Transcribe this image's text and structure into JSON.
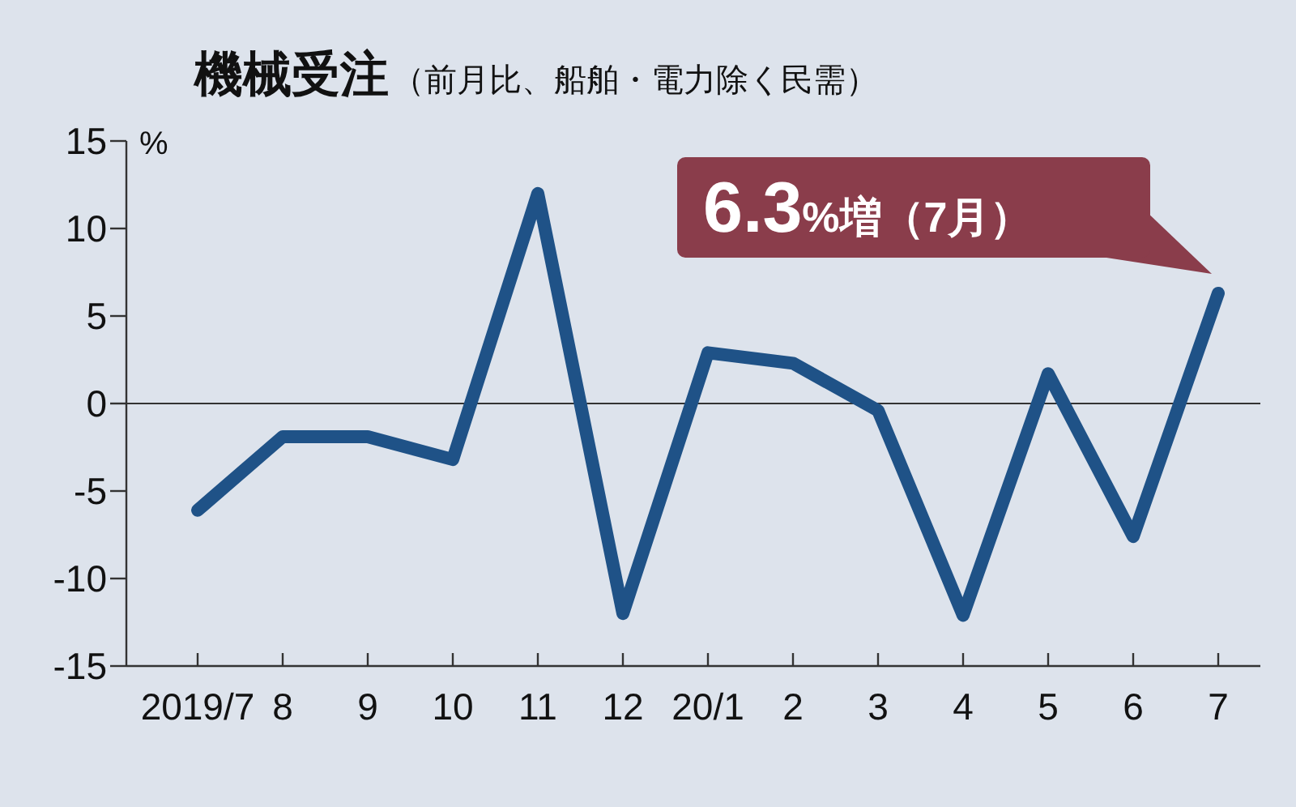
{
  "chart_data": {
    "type": "line",
    "title": "機械受注",
    "subtitle": "（前月比、船舶・電力除く民需）",
    "ylabel": "%",
    "categories": [
      "2019/7",
      "8",
      "9",
      "10",
      "11",
      "12",
      "20/1",
      "2",
      "3",
      "4",
      "5",
      "6",
      "7"
    ],
    "series": [
      {
        "color": "#1f5287",
        "values": [
          -6.1,
          -1.9,
          -1.9,
          -3.2,
          12.0,
          -12.0,
          2.9,
          2.3,
          -0.4,
          -12.1,
          1.7,
          -7.6,
          6.3
        ]
      }
    ],
    "ylim": [
      -15,
      15
    ],
    "yticks": [
      -15,
      -10,
      -5,
      0,
      5,
      10,
      15
    ],
    "ref_lines": [
      {
        "axis": "y",
        "value": 0,
        "color": "#333333"
      }
    ],
    "annotations": [
      {
        "text": "6.3%増（7月）",
        "x": "7",
        "y": 6.3
      }
    ],
    "line_style": "solid"
  }
}
